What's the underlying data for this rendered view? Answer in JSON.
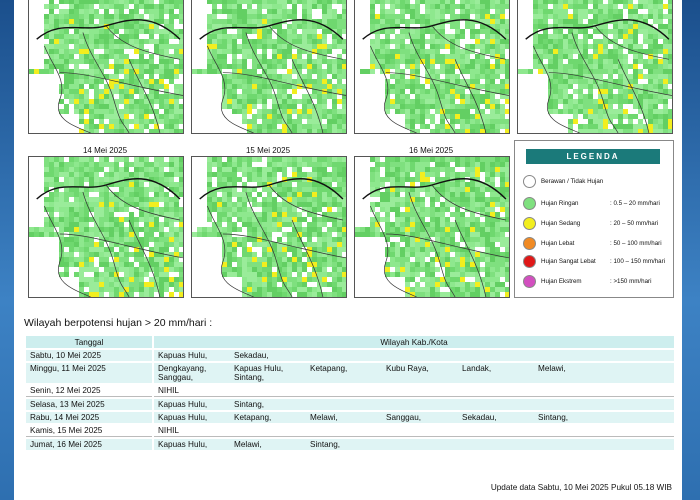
{
  "maps": {
    "row1": [
      {
        "label": ""
      },
      {
        "label": ""
      },
      {
        "label": ""
      },
      {
        "label": ""
      }
    ],
    "row2": [
      {
        "label": "14 Mei 2025"
      },
      {
        "label": "15 Mei 2025"
      },
      {
        "label": "16 Mei 2025"
      }
    ]
  },
  "legend": {
    "title": "LEGENDA",
    "items": [
      {
        "label": "Berawan / Tidak Hujan",
        "range": "",
        "color": "#ffffff"
      },
      {
        "label": "Hujan Ringan",
        "range": ": 0.5 – 20 mm/hari",
        "color": "#7fe07f"
      },
      {
        "label": "Hujan Sedang",
        "range": ": 20 – 50 mm/hari",
        "color": "#f2ee1f"
      },
      {
        "label": "Hujan Lebat",
        "range": ": 50 – 100 mm/hari",
        "color": "#f08a24"
      },
      {
        "label": "Hujan Sangat Lebat",
        "range": ": 100 – 150 mm/hari",
        "color": "#e01818"
      },
      {
        "label": "Hujan Ekstrem",
        "range": ": >150 mm/hari",
        "color": "#d24fbf"
      }
    ]
  },
  "section_title": "Wilayah berpotensi hujan > 20 mm/hari :",
  "table": {
    "headers": [
      "Tanggal",
      "Wilayah Kab./Kota"
    ],
    "rows": [
      {
        "date": "Sabtu, 10 Mei 2025",
        "regions": [
          "Kapuas Hulu,",
          "Sekadau,"
        ]
      },
      {
        "date": "Minggu, 11 Mei 2025",
        "regions": [
          "Dengkayang,",
          "Kapuas Hulu,",
          "Ketapang,",
          "Kubu Raya,",
          "Landak,",
          "Melawi,",
          "Sanggau,",
          "Sintang,"
        ]
      },
      {
        "date": "Senin, 12 Mei 2025",
        "regions": [
          "NIHIL"
        ]
      },
      {
        "date": "Selasa, 13 Mei 2025",
        "regions": [
          "Kapuas Hulu,",
          "Sintang,"
        ]
      },
      {
        "date": "Rabu, 14 Mei 2025",
        "regions": [
          "Kapuas Hulu,",
          "Ketapang,",
          "Melawi,",
          "Sanggau,",
          "Sekadau,",
          "Sintang,"
        ]
      },
      {
        "date": "Kamis, 15 Mei 2025",
        "regions": [
          "NIHIL"
        ]
      },
      {
        "date": "Jumat, 16 Mei 2025",
        "regions": [
          "Kapuas Hulu,",
          "Melawi,",
          "Sintang,"
        ]
      }
    ]
  },
  "update_text": "Update data Sabtu, 10 Mei 2025 Pukul 05.18 WIB"
}
